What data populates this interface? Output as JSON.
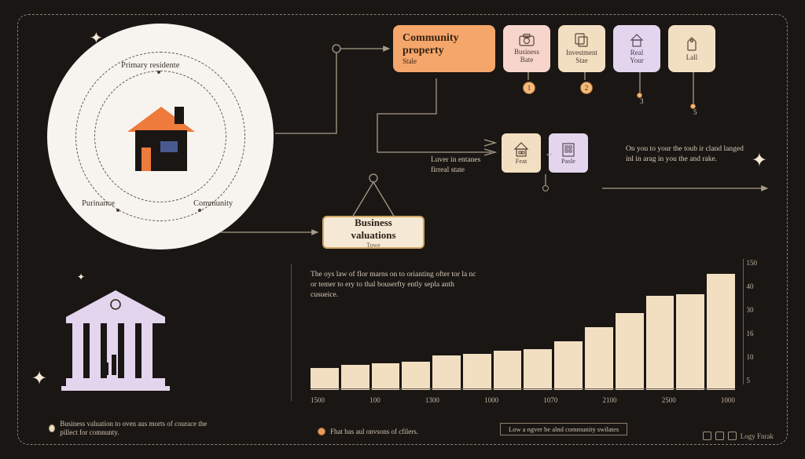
{
  "colors": {
    "bg": "#1a1614",
    "cream": "#f5e8d5",
    "orange": "#ee7a3b",
    "orange_soft": "#f5a66b",
    "lilac": "#e3d5ed",
    "card_pink": "#f7d5cc",
    "dark_card": "#2e2a24",
    "beige_bar": "#f2dfc2"
  },
  "circle": {
    "top_label": "Primary residente",
    "bottom_left_label": "Purinance",
    "bottom_right_label": "Community"
  },
  "community_card": {
    "bg": "#f5a66b",
    "line1": "Community",
    "line2": "property",
    "sub": "Stale"
  },
  "cards": [
    {
      "bg": "#f7d5cc",
      "label1": "Business",
      "label2": "Bate",
      "icon": "camera"
    },
    {
      "bg": "#f2dfc2",
      "label1": "Investment",
      "label2": "Stae",
      "icon": "docs"
    },
    {
      "bg": "#e3d5ed",
      "label1": "Real",
      "label2": "Your",
      "icon": "house"
    },
    {
      "bg": "#f2dfc2",
      "label1": "Lall",
      "label2": "",
      "icon": "tag"
    }
  ],
  "numbers": [
    "1",
    "2",
    "3",
    "5"
  ],
  "mid_cards": [
    {
      "bg": "#f2dfc2",
      "label": "Feat",
      "icon": "house"
    },
    {
      "bg": "#e3d5ed",
      "label": "Pasle",
      "icon": "building"
    }
  ],
  "sign": {
    "line1": "Business",
    "line2": "valuations",
    "sub": "Towe"
  },
  "text_blocks": {
    "mid_left": "Luver in entanes firreal state",
    "mid_right": "On you to your the toub ir cland langed inl in arag in you the and rake.",
    "chart_desc": "The oys law of flor marns on to orianting ofter tor la nc or temer to ery to thal bouserfty ently sepla anth cusueice.",
    "footer1": "Business valuation to oven aus morts of courace the pillect for comnunty.",
    "footer2": "Fhat bas aul onvsons of cfilers.",
    "footer_box": "Low a ngver be alnd community swilates"
  },
  "chart": {
    "type": "bar",
    "values": [
      28,
      32,
      34,
      36,
      44,
      46,
      50,
      52,
      62,
      80,
      98,
      120,
      122,
      148
    ],
    "max": 150,
    "x_labels": [
      "1500",
      "100",
      "1300",
      "1000",
      "1070",
      "2100",
      "2500",
      "1000"
    ],
    "y_labels": [
      "150",
      "40",
      "30",
      "16",
      "10",
      "5"
    ],
    "bar_color": "#f2dfc2"
  },
  "credit": "Logy Fnrak"
}
